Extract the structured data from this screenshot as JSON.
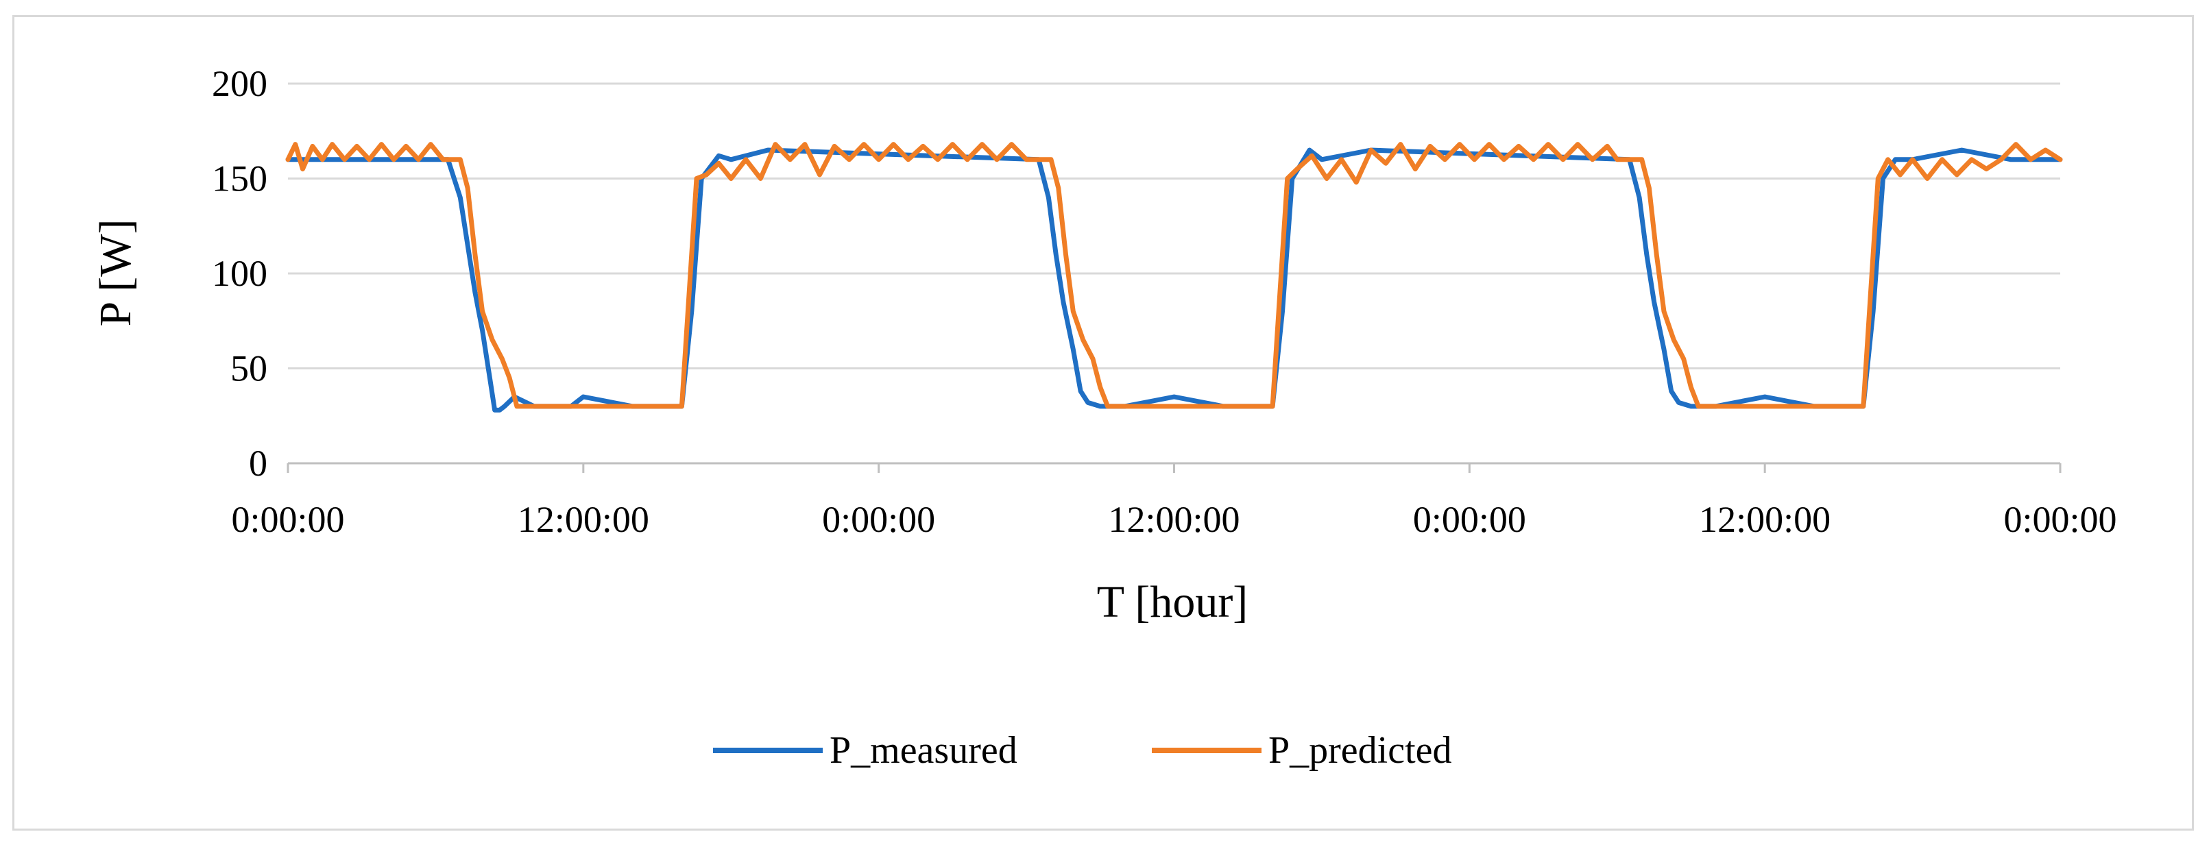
{
  "chart_data": {
    "type": "line",
    "title": "",
    "xlabel": "T [hour]",
    "ylabel": "P [W]",
    "ylim": [
      0,
      200
    ],
    "yticks": [
      "0",
      "50",
      "100",
      "150",
      "200"
    ],
    "xlim_hours": [
      0,
      72
    ],
    "xticks": [
      {
        "hour": 0,
        "label": "0:00:00"
      },
      {
        "hour": 12,
        "label": "12:00:00"
      },
      {
        "hour": 24,
        "label": "0:00:00"
      },
      {
        "hour": 36,
        "label": "12:00:00"
      },
      {
        "hour": 48,
        "label": "0:00:00"
      },
      {
        "hour": 60,
        "label": "12:00:00"
      },
      {
        "hour": 72,
        "label": "0:00:00"
      }
    ],
    "grid": true,
    "legend_position": "bottom",
    "series": [
      {
        "name": "P_measured",
        "color": "#1f6fc4",
        "x_hours": [
          0,
          6.5,
          7.0,
          7.3,
          7.6,
          7.9,
          8.2,
          8.4,
          8.6,
          8.8,
          9.2,
          10.0,
          11.5,
          12.0,
          14.0,
          16.0,
          16.4,
          16.8,
          17.5,
          18.0,
          19.5,
          30.5,
          30.9,
          31.2,
          31.5,
          31.9,
          32.2,
          32.5,
          33.0,
          34.0,
          36.0,
          38.0,
          40.0,
          40.4,
          40.8,
          41.5,
          42.0,
          44.0,
          54.5,
          54.9,
          55.2,
          55.5,
          55.9,
          56.2,
          56.5,
          57.0,
          58.0,
          60.0,
          62.0,
          64.0,
          64.4,
          64.8,
          65.3,
          66.0,
          68.0,
          70.0,
          72.0
        ],
        "values": [
          160,
          160,
          140,
          115,
          90,
          70,
          45,
          28,
          28,
          30,
          35,
          30,
          30,
          35,
          30,
          30,
          80,
          150,
          162,
          160,
          165,
          160,
          140,
          110,
          85,
          60,
          38,
          32,
          30,
          30,
          35,
          30,
          30,
          80,
          150,
          165,
          160,
          165,
          160,
          140,
          110,
          85,
          60,
          38,
          32,
          30,
          30,
          35,
          30,
          30,
          80,
          150,
          160,
          160,
          165,
          160,
          160
        ]
      },
      {
        "name": "P_predicted",
        "color": "#f07e26",
        "x_hours": [
          0,
          0.3,
          0.6,
          1.0,
          1.4,
          1.8,
          2.3,
          2.8,
          3.3,
          3.8,
          4.3,
          4.8,
          5.3,
          5.8,
          6.3,
          7.0,
          7.3,
          7.6,
          7.9,
          8.3,
          8.7,
          9.0,
          9.3,
          10.0,
          14.0,
          16.0,
          16.3,
          16.6,
          17.0,
          17.5,
          18.0,
          18.6,
          19.2,
          19.8,
          20.4,
          21.0,
          21.6,
          22.2,
          22.8,
          23.4,
          24.0,
          24.6,
          25.2,
          25.8,
          26.4,
          27.0,
          27.6,
          28.2,
          28.8,
          29.4,
          30.0,
          31.0,
          31.3,
          31.6,
          31.9,
          32.3,
          32.7,
          33.0,
          33.3,
          34.0,
          38.0,
          40.0,
          40.3,
          40.6,
          41.0,
          41.6,
          42.2,
          42.8,
          43.4,
          44.0,
          44.6,
          45.2,
          45.8,
          46.4,
          47.0,
          47.6,
          48.2,
          48.8,
          49.4,
          50.0,
          50.6,
          51.2,
          51.8,
          52.4,
          53.0,
          53.6,
          54.0,
          55.0,
          55.3,
          55.6,
          55.9,
          56.3,
          56.7,
          57.0,
          57.3,
          58.0,
          62.0,
          64.0,
          64.3,
          64.6,
          65.0,
          65.5,
          66.0,
          66.6,
          67.2,
          67.8,
          68.4,
          69.0,
          69.6,
          70.2,
          70.8,
          71.4,
          72.0
        ],
        "values": [
          160,
          168,
          155,
          167,
          160,
          168,
          160,
          167,
          160,
          168,
          160,
          167,
          160,
          168,
          160,
          160,
          145,
          110,
          80,
          65,
          55,
          45,
          30,
          30,
          30,
          30,
          90,
          150,
          152,
          158,
          150,
          160,
          150,
          168,
          160,
          168,
          152,
          167,
          160,
          168,
          160,
          168,
          160,
          167,
          160,
          168,
          160,
          168,
          160,
          168,
          160,
          160,
          145,
          110,
          80,
          65,
          55,
          40,
          30,
          30,
          30,
          30,
          90,
          150,
          155,
          162,
          150,
          160,
          148,
          165,
          158,
          168,
          155,
          167,
          160,
          168,
          160,
          168,
          160,
          167,
          160,
          168,
          160,
          168,
          160,
          167,
          160,
          160,
          145,
          110,
          80,
          65,
          55,
          40,
          30,
          30,
          30,
          30,
          90,
          150,
          160,
          152,
          160,
          150,
          160,
          152,
          160,
          155,
          160,
          168,
          160,
          165,
          160
        ]
      }
    ]
  }
}
